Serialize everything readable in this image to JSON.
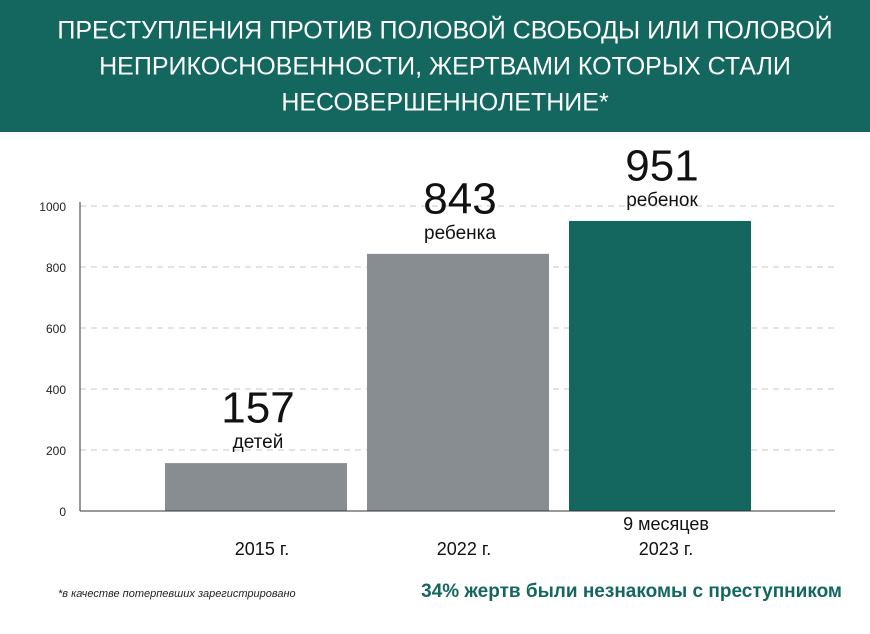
{
  "chart_data": {
    "type": "bar",
    "title": [
      "ПРЕСТУПЛЕНИЯ ПРОТИВ ПОЛОВОЙ СВОБОДЫ ИЛИ ПОЛОВОЙ",
      "НЕПРИКОСНОВЕННОСТИ, ЖЕРТВАМИ КОТОРЫХ СТАЛИ",
      "НЕСОВЕРШЕННОЛЕТНИЕ*"
    ],
    "categories": [
      "2015 г.",
      "2022 г.",
      "2023 г."
    ],
    "period_note": "9 месяцев",
    "values": [
      157,
      843,
      951
    ],
    "value_notes": [
      "детей",
      "ребенка",
      "ребенок"
    ],
    "colors": [
      "#878d90",
      "#878d90",
      "#14675f"
    ],
    "ylim": [
      0,
      1000
    ],
    "yticks": [
      0,
      200,
      400,
      600,
      800,
      1000
    ],
    "grid": true,
    "footnote": "*в качестве потерпевших зарегистрировано",
    "annotation": "34% жертв были незнакомы с преступником"
  }
}
